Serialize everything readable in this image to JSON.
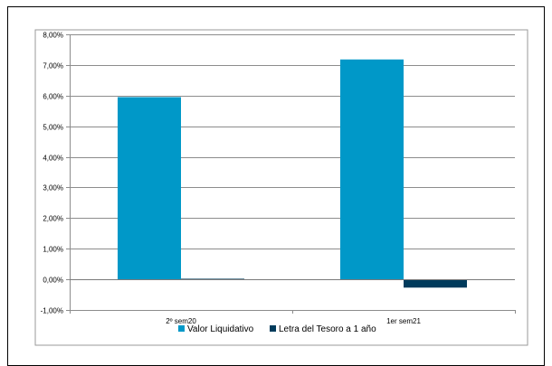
{
  "chart_data": {
    "type": "bar",
    "title": "",
    "xlabel": "",
    "ylabel": "",
    "categories": [
      "2º sem20",
      "1er sem21"
    ],
    "series": [
      {
        "name": "Valor Liquidativo",
        "color": "#0098C8",
        "values": [
          5.95,
          7.18
        ]
      },
      {
        "name": "Letra del Tesoro a 1 año",
        "color": "#003B5C",
        "values": [
          0.02,
          -0.27
        ]
      }
    ],
    "ylim": [
      -1,
      8
    ],
    "yticks": [
      -1,
      0,
      1,
      2,
      3,
      4,
      5,
      6,
      7,
      8
    ],
    "ytick_labels": [
      "-1,00%",
      "0,00%",
      "1,00%",
      "2,00%",
      "3,00%",
      "4,00%",
      "5,00%",
      "6,00%",
      "7,00%",
      "8,00%"
    ],
    "grid": true,
    "legend_position": "bottom"
  }
}
